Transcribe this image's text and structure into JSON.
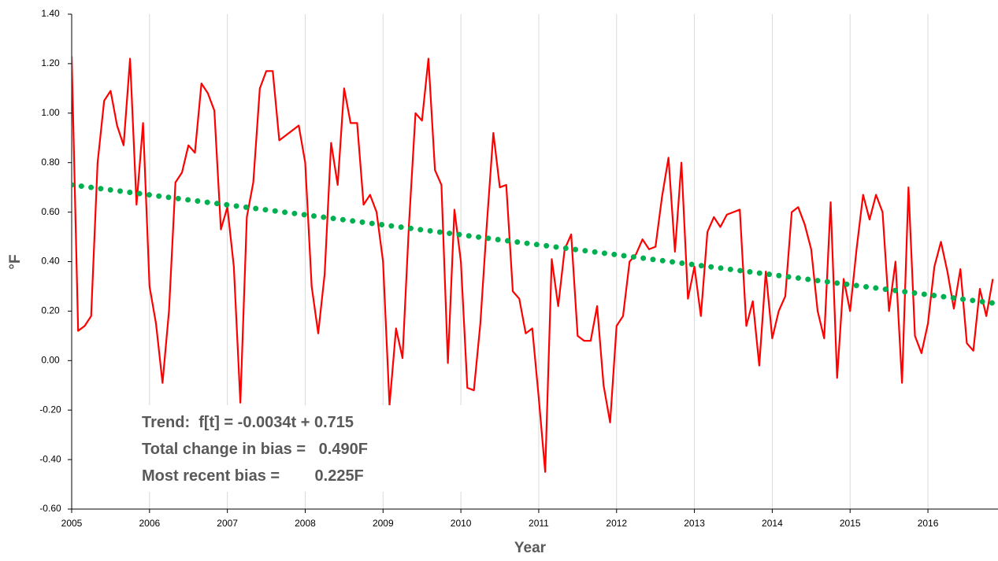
{
  "chart_data": {
    "type": "line",
    "xlabel": "Year",
    "ylabel": "°F",
    "xlim": [
      2005,
      2016.9
    ],
    "xticks": [
      2005,
      2006,
      2007,
      2008,
      2009,
      2010,
      2011,
      2012,
      2013,
      2014,
      2015,
      2016
    ],
    "ylim": [
      -0.6,
      1.4
    ],
    "yticks": [
      {
        "value": -0.6,
        "label": "-0.60"
      },
      {
        "value": -0.4,
        "label": "-0.40"
      },
      {
        "value": -0.2,
        "label": "-0.20"
      },
      {
        "value": 0,
        "label": "0.00"
      },
      {
        "value": 0.2,
        "label": "0.20"
      },
      {
        "value": 0.4,
        "label": "0.40"
      },
      {
        "value": 0.6,
        "label": "0.60"
      },
      {
        "value": 0.8,
        "label": "0.80"
      },
      {
        "value": 1.0,
        "label": "1.00"
      },
      {
        "value": 1.2,
        "label": "1.20"
      },
      {
        "value": 1.4,
        "label": "1.40"
      }
    ],
    "grid": "x",
    "series": [
      {
        "color": "#ff0000",
        "style": "solid",
        "x": [
          2005,
          2005.083,
          2005.167,
          2005.25,
          2005.333,
          2005.417,
          2005.5,
          2005.583,
          2005.667,
          2005.75,
          2005.833,
          2005.917,
          2006,
          2006.083,
          2006.167,
          2006.25,
          2006.333,
          2006.417,
          2006.5,
          2006.583,
          2006.667,
          2006.75,
          2006.833,
          2006.917,
          2007,
          2007.083,
          2007.167,
          2007.25,
          2007.333,
          2007.417,
          2007.5,
          2007.583,
          2007.667,
          2007.75,
          2007.833,
          2007.917,
          2008,
          2008.083,
          2008.167,
          2008.25,
          2008.333,
          2008.417,
          2008.5,
          2008.583,
          2008.667,
          2008.75,
          2008.833,
          2008.917,
          2009,
          2009.083,
          2009.167,
          2009.25,
          2009.333,
          2009.417,
          2009.5,
          2009.583,
          2009.667,
          2009.75,
          2009.833,
          2009.917,
          2010,
          2010.083,
          2010.167,
          2010.25,
          2010.333,
          2010.417,
          2010.5,
          2010.583,
          2010.667,
          2010.75,
          2010.833,
          2010.917,
          2011,
          2011.083,
          2011.167,
          2011.25,
          2011.333,
          2011.417,
          2011.5,
          2011.583,
          2011.667,
          2011.75,
          2011.833,
          2011.917,
          2012,
          2012.083,
          2012.167,
          2012.25,
          2012.333,
          2012.417,
          2012.5,
          2012.583,
          2012.667,
          2012.75,
          2012.833,
          2012.917,
          2013,
          2013.083,
          2013.167,
          2013.25,
          2013.333,
          2013.417,
          2013.5,
          2013.583,
          2013.667,
          2013.75,
          2013.833,
          2013.917,
          2014,
          2014.083,
          2014.167,
          2014.25,
          2014.333,
          2014.417,
          2014.5,
          2014.583,
          2014.667,
          2014.75,
          2014.833,
          2014.917,
          2015,
          2015.083,
          2015.167,
          2015.25,
          2015.333,
          2015.417,
          2015.5,
          2015.583,
          2015.667,
          2015.75,
          2015.833,
          2015.917,
          2016,
          2016.083,
          2016.167,
          2016.25,
          2016.333,
          2016.417,
          2016.5,
          2016.583,
          2016.667,
          2016.75,
          2016.833
        ],
        "values": [
          1.23,
          0.12,
          0.14,
          0.18,
          0.8,
          1.05,
          1.09,
          0.95,
          0.87,
          1.22,
          0.63,
          0.96,
          0.3,
          0.15,
          -0.09,
          0.2,
          0.72,
          0.76,
          0.87,
          0.84,
          1.12,
          1.08,
          1.01,
          0.53,
          0.62,
          0.38,
          -0.17,
          0.58,
          0.72,
          1.1,
          1.17,
          1.17,
          0.89,
          0.91,
          0.93,
          0.95,
          0.8,
          0.3,
          0.11,
          0.35,
          0.88,
          0.71,
          1.1,
          0.96,
          0.96,
          0.63,
          0.67,
          0.6,
          0.4,
          -0.18,
          0.13,
          0.01,
          0.55,
          1.0,
          0.97,
          1.22,
          0.77,
          0.71,
          -0.01,
          0.61,
          0.4,
          -0.11,
          -0.12,
          0.15,
          0.55,
          0.92,
          0.7,
          0.71,
          0.28,
          0.25,
          0.11,
          0.13,
          -0.15,
          -0.45,
          0.41,
          0.22,
          0.45,
          0.51,
          0.1,
          0.08,
          0.08,
          0.22,
          -0.1,
          -0.25,
          0.14,
          0.18,
          0.4,
          0.43,
          0.49,
          0.45,
          0.46,
          0.66,
          0.82,
          0.44,
          0.8,
          0.25,
          0.38,
          0.18,
          0.52,
          0.58,
          0.54,
          0.59,
          0.6,
          0.61,
          0.14,
          0.24,
          -0.02,
          0.36,
          0.09,
          0.2,
          0.26,
          0.6,
          0.62,
          0.55,
          0.45,
          0.2,
          0.09,
          0.64,
          -0.07,
          0.33,
          0.2,
          0.45,
          0.67,
          0.57,
          0.67,
          0.6,
          0.2,
          0.4,
          -0.09,
          0.7,
          0.1,
          0.03,
          0.15,
          0.38,
          0.48,
          0.36,
          0.21,
          0.37,
          0.07,
          0.04,
          0.29,
          0.18,
          0.33
        ]
      },
      {
        "color": "#00b050",
        "style": "dotted",
        "x": [
          2005,
          2016.9
        ],
        "values": [
          0.71,
          0.23
        ]
      }
    ],
    "annotations": [
      "Trend:  f[t] = -0.0034t + 0.715",
      "Total change in bias =   0.490F",
      "Most recent bias =        0.225F"
    ]
  }
}
